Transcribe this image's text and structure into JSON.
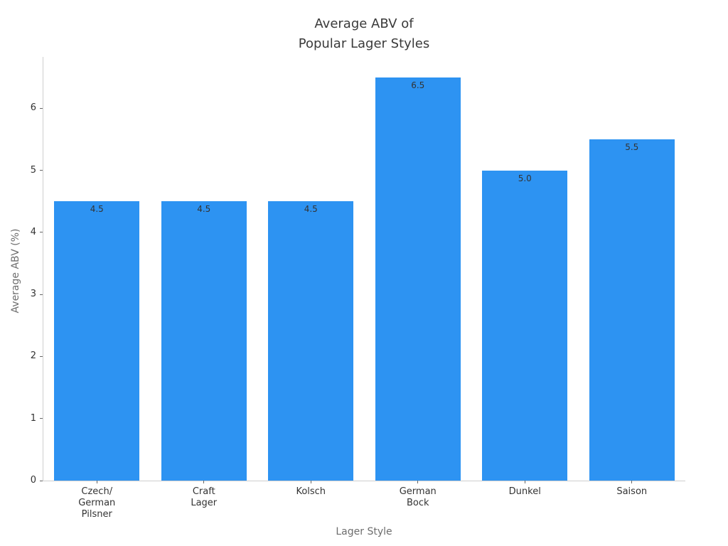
{
  "chart_data": {
    "type": "bar",
    "title": "Average ABV of\nPopular Lager Styles",
    "categories": [
      "Czech/\nGerman\nPilsner",
      "Craft\nLager",
      "Kolsch",
      "German\nBock",
      "Dunkel",
      "Saison"
    ],
    "values": [
      4.5,
      4.5,
      4.5,
      6.5,
      5.0,
      5.5
    ],
    "value_labels": [
      "4.5",
      "4.5",
      "4.5",
      "6.5",
      "5.0",
      "5.5"
    ],
    "xlabel": "Lager Style",
    "ylabel": "Average ABV (%)",
    "ylim": [
      0,
      6.83
    ],
    "yticks": [
      0,
      1,
      2,
      3,
      4,
      5,
      6
    ],
    "grid": false,
    "legend": "none",
    "bar_color": "#2d93f2",
    "bar_width_fraction": 0.8
  },
  "colors": {
    "background": "#ffffff",
    "spine": "#cfcfcf",
    "tick_text": "#333333",
    "axis_title_text": "#6e6e6e",
    "title_text": "#3a3a3a",
    "value_label_text": "#333333"
  }
}
